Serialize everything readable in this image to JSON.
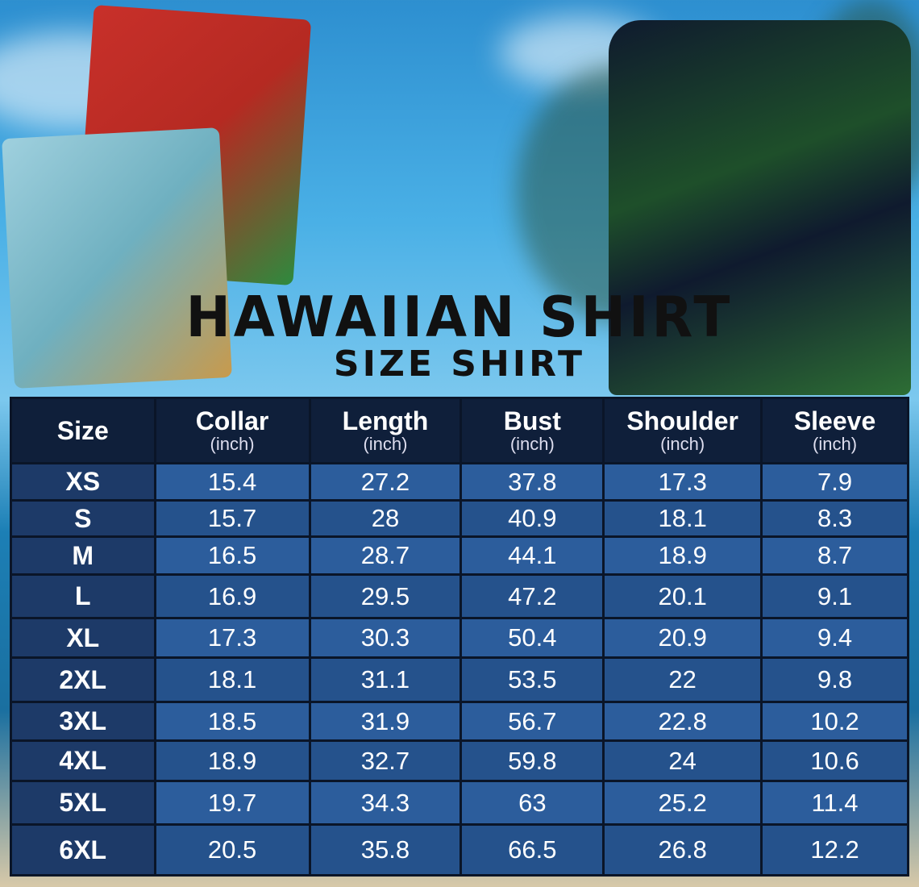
{
  "title": "HAWAIIAN SHIRT",
  "subtitle": "SIZE SHIRT",
  "table": {
    "headers": [
      {
        "label": "Size",
        "unit": ""
      },
      {
        "label": "Collar",
        "unit": "(inch)"
      },
      {
        "label": "Length",
        "unit": "(inch)"
      },
      {
        "label": "Bust",
        "unit": "(inch)"
      },
      {
        "label": "Shoulder",
        "unit": "(inch)"
      },
      {
        "label": "Sleeve",
        "unit": "(inch)"
      }
    ],
    "rows": [
      [
        "XS",
        "15.4",
        "27.2",
        "37.8",
        "17.3",
        "7.9"
      ],
      [
        "S",
        "15.7",
        "28",
        "40.9",
        "18.1",
        "8.3"
      ],
      [
        "M",
        "16.5",
        "28.7",
        "44.1",
        "18.9",
        "8.7"
      ],
      [
        "L",
        "16.9",
        "29.5",
        "47.2",
        "20.1",
        "9.1"
      ],
      [
        "XL",
        "17.3",
        "30.3",
        "50.4",
        "20.9",
        "9.4"
      ],
      [
        "2XL",
        "18.1",
        "31.1",
        "53.5",
        "22",
        "9.8"
      ],
      [
        "3XL",
        "18.5",
        "31.9",
        "56.7",
        "22.8",
        "10.2"
      ],
      [
        "4XL",
        "18.9",
        "32.7",
        "59.8",
        "24",
        "10.6"
      ],
      [
        "5XL",
        "19.7",
        "34.3",
        "63",
        "25.2",
        "11.4"
      ],
      [
        "6XL",
        "20.5",
        "35.8",
        "66.5",
        "26.8",
        "12.2"
      ]
    ]
  },
  "colors": {
    "header": "#0f1f3a",
    "size_column": "#1d3a68",
    "cell": "#2c5d9c"
  }
}
